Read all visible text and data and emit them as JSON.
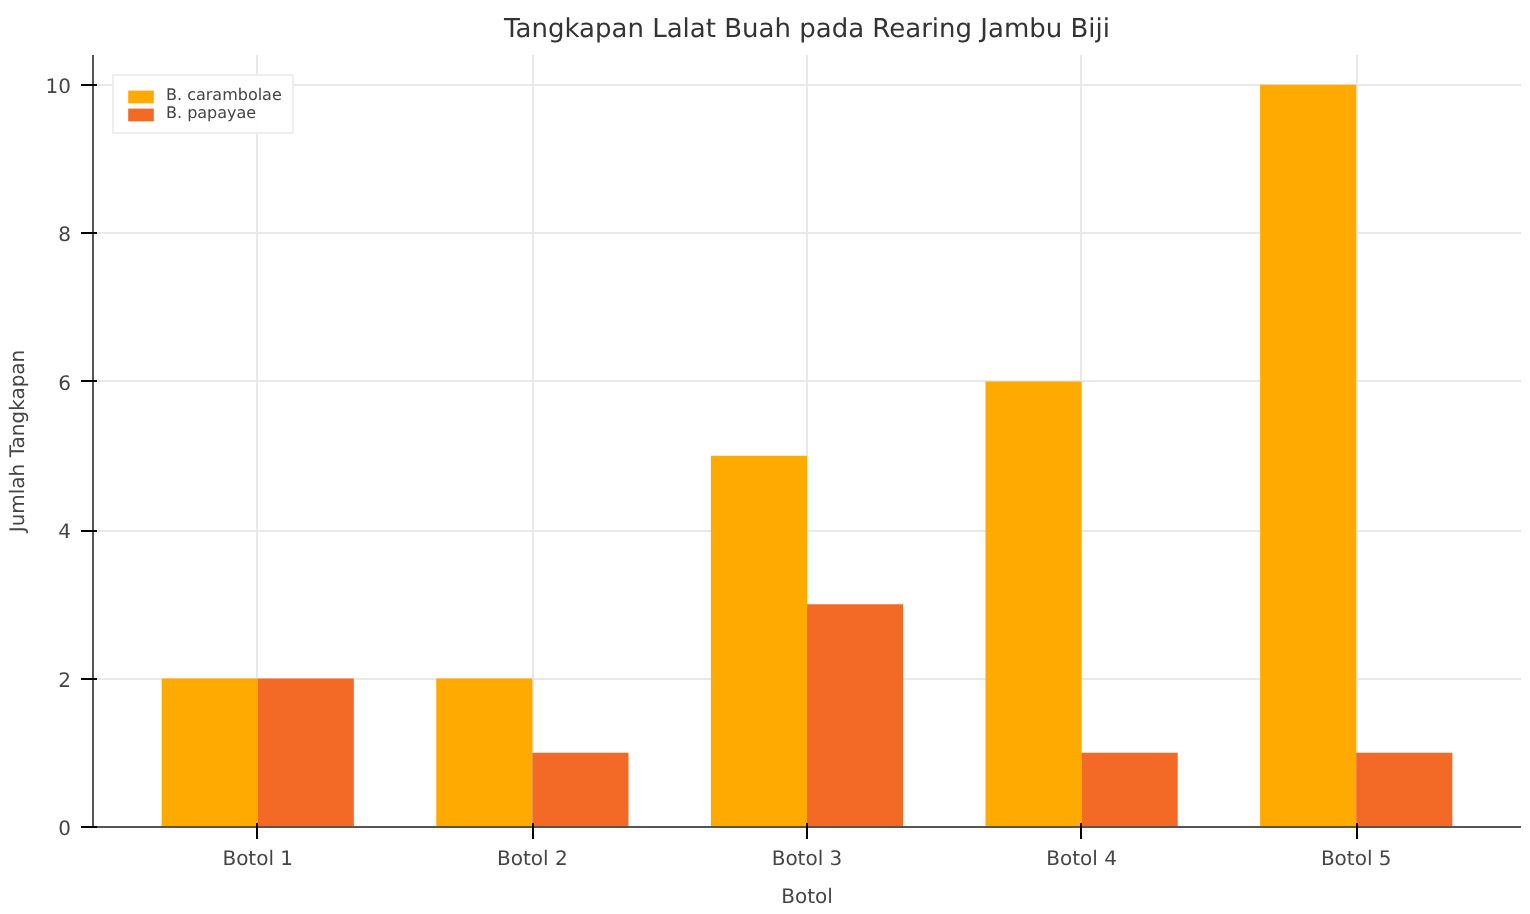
{
  "chart_data": {
    "type": "bar",
    "title": "Tangkapan Lalat Buah pada Rearing Jambu Biji",
    "xlabel": "Botol",
    "ylabel": "Jumlah Tangkapan",
    "categories": [
      "Botol 1",
      "Botol 2",
      "Botol 3",
      "Botol 4",
      "Botol 5"
    ],
    "series": [
      {
        "name": "B. carambolae",
        "color": "#ffaa00",
        "values": [
          2,
          2,
          5,
          6,
          10
        ]
      },
      {
        "name": "B. papayae",
        "color": "#f26a26",
        "values": [
          2,
          1,
          3,
          1,
          1
        ]
      }
    ],
    "ylim": [
      0,
      10.4
    ],
    "yticks": [
      0,
      2,
      4,
      6,
      8,
      10
    ],
    "grid": true,
    "legend": "top left"
  }
}
